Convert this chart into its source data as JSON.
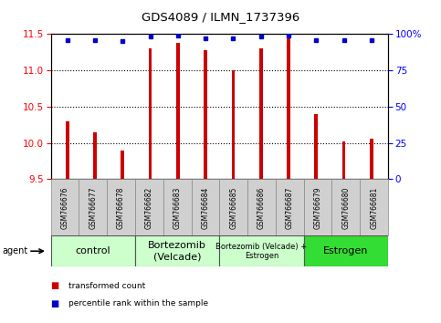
{
  "title": "GDS4089 / ILMN_1737396",
  "samples": [
    "GSM766676",
    "GSM766677",
    "GSM766678",
    "GSM766682",
    "GSM766683",
    "GSM766684",
    "GSM766685",
    "GSM766686",
    "GSM766687",
    "GSM766679",
    "GSM766680",
    "GSM766681"
  ],
  "bar_values": [
    10.3,
    10.15,
    9.9,
    11.3,
    11.38,
    11.27,
    11.0,
    11.3,
    11.45,
    10.4,
    10.02,
    10.06
  ],
  "percentile_values": [
    96,
    96,
    95,
    98,
    99,
    97,
    97,
    98,
    99,
    96,
    96,
    96
  ],
  "bar_color": "#cc0000",
  "percentile_color": "#0000cc",
  "ylim_left": [
    9.5,
    11.5
  ],
  "ylim_right": [
    0,
    100
  ],
  "yticks_left": [
    9.5,
    10.0,
    10.5,
    11.0,
    11.5
  ],
  "yticks_right": [
    0,
    25,
    50,
    75,
    100
  ],
  "groups": [
    {
      "label": "control",
      "start": 0,
      "end": 3,
      "color": "#ccffcc",
      "fontsize": 8
    },
    {
      "label": "Bortezomib\n(Velcade)",
      "start": 3,
      "end": 6,
      "color": "#ccffcc",
      "fontsize": 8
    },
    {
      "label": "Bortezomib (Velcade) +\nEstrogen",
      "start": 6,
      "end": 9,
      "color": "#ccffcc",
      "fontsize": 6
    },
    {
      "label": "Estrogen",
      "start": 9,
      "end": 12,
      "color": "#33dd33",
      "fontsize": 8
    }
  ],
  "agent_label": "agent",
  "legend_items": [
    {
      "label": "transformed count",
      "color": "#cc0000"
    },
    {
      "label": "percentile rank within the sample",
      "color": "#0000cc"
    }
  ],
  "bar_width": 0.12,
  "sample_box_color": "#d0d0d0",
  "background_color": "#ffffff"
}
